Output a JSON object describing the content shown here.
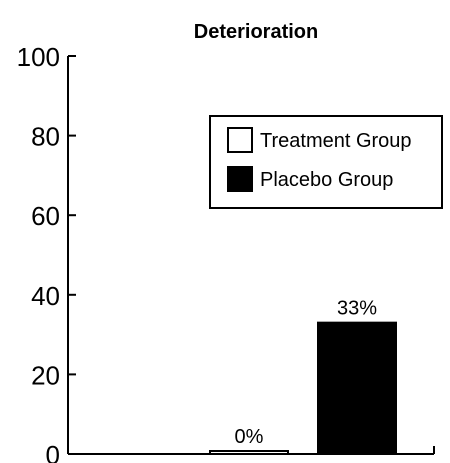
{
  "chart_data": {
    "type": "bar",
    "title": "Deterioration",
    "xlabel": "",
    "ylabel": "",
    "ylim": [
      0,
      100
    ],
    "yticks": [
      0,
      20,
      40,
      60,
      80,
      100
    ],
    "categories": [
      ""
    ],
    "series": [
      {
        "name": "Treatment Group",
        "values": [
          0
        ],
        "label": "0%",
        "fill": "#ffffff"
      },
      {
        "name": "Placebo Group",
        "values": [
          33
        ],
        "label": "33%",
        "fill": "#000000"
      }
    ],
    "legend": "top-right",
    "grid": false
  }
}
